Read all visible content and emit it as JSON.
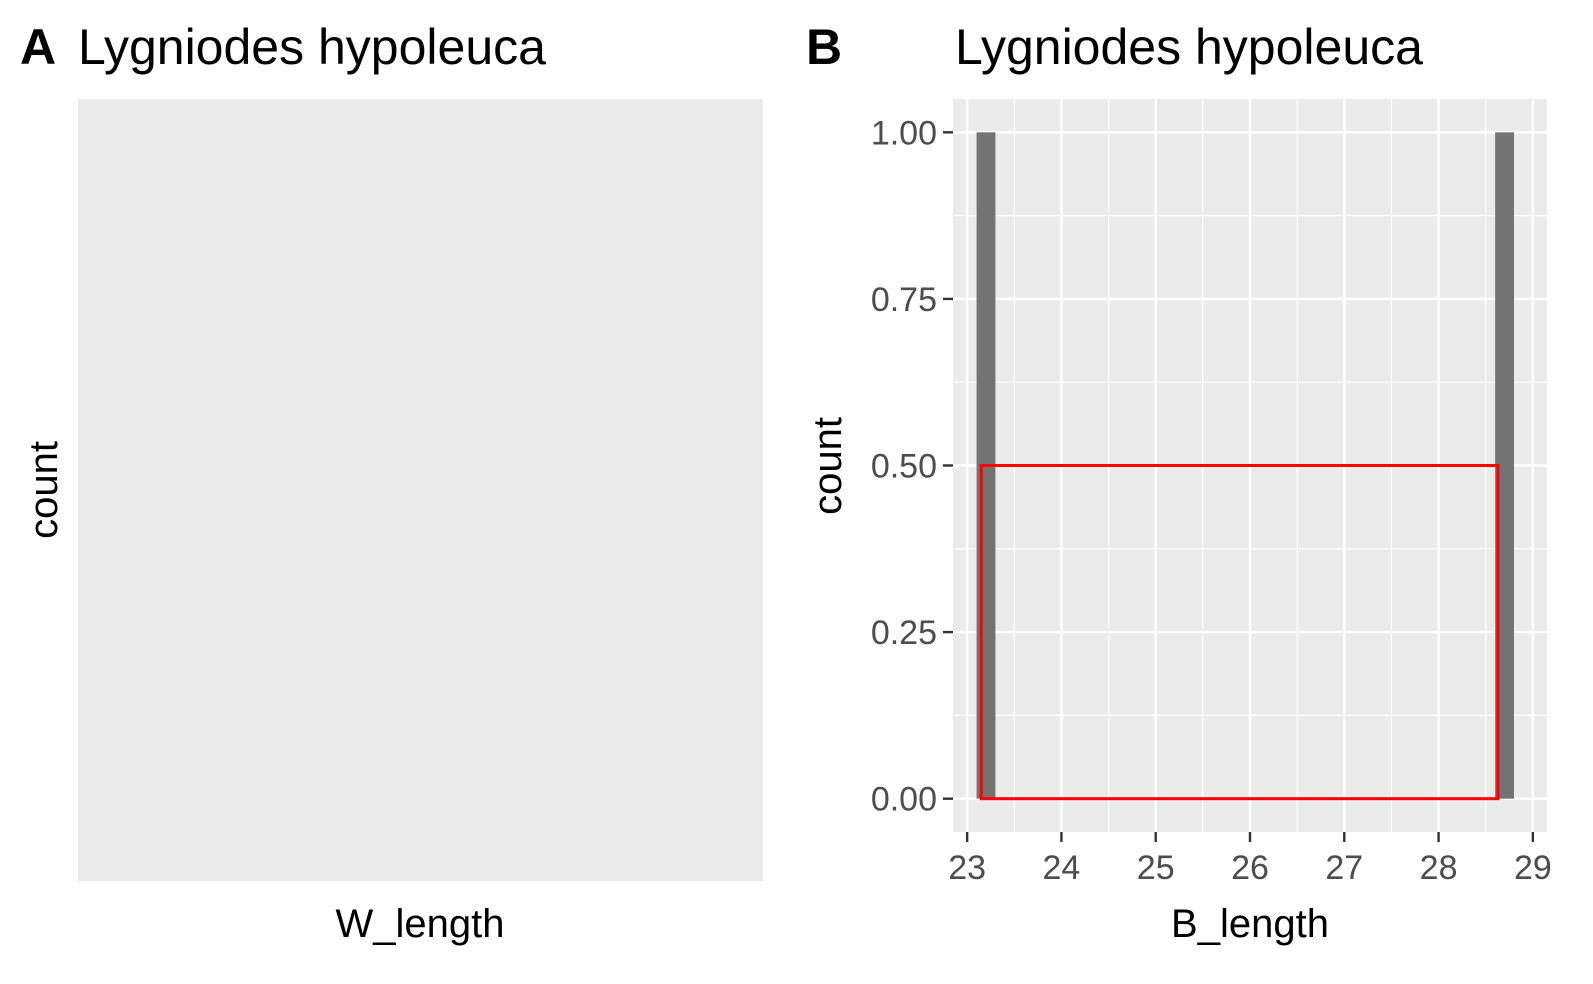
{
  "chart_data": [
    {
      "panel": "A",
      "type": "bar",
      "title": "Lygniodes hypoleuca",
      "xlabel": "W_length",
      "ylabel": "count",
      "categories": [],
      "values": []
    },
    {
      "panel": "B",
      "type": "bar",
      "title": "Lygniodes hypoleuca",
      "xlabel": "B_length",
      "ylabel": "count",
      "xlim": [
        22.85,
        29.15
      ],
      "ylim": [
        -0.05,
        1.05
      ],
      "xticks": [
        "23",
        "24",
        "25",
        "26",
        "27",
        "28",
        "29"
      ],
      "yticks": [
        "0.00",
        "0.25",
        "0.50",
        "0.75",
        "1.00"
      ],
      "bar_color": "#737373",
      "bars": [
        {
          "xmin": 23.1,
          "xmax": 23.3,
          "count": 1
        },
        {
          "xmin": 28.6,
          "xmax": 28.8,
          "count": 1
        }
      ],
      "highlight": {
        "xmin": 23.15,
        "xmax": 28.63,
        "ymin": 0.0,
        "ymax": 0.5,
        "color": "#ff0000"
      }
    }
  ]
}
